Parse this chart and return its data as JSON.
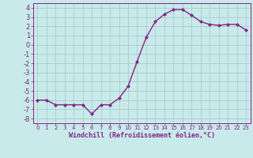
{
  "x": [
    0,
    1,
    2,
    3,
    4,
    5,
    6,
    7,
    8,
    9,
    10,
    11,
    12,
    13,
    14,
    15,
    16,
    17,
    18,
    19,
    20,
    21,
    22,
    23
  ],
  "y": [
    -6.0,
    -6.0,
    -6.5,
    -6.5,
    -6.5,
    -6.5,
    -7.5,
    -6.5,
    -6.5,
    -5.8,
    -4.5,
    -1.8,
    0.8,
    2.5,
    3.3,
    3.8,
    3.8,
    3.2,
    2.5,
    2.2,
    2.1,
    2.2,
    2.2,
    1.6
  ],
  "line_color": "#882288",
  "marker": "D",
  "marker_size": 2.0,
  "bg_color": "#c8eaea",
  "grid_color": "#aacccc",
  "xlabel": "Windchill (Refroidissement éolien,°C)",
  "ylim": [
    -8.5,
    4.5
  ],
  "xlim": [
    -0.5,
    23.5
  ],
  "yticks": [
    -8,
    -7,
    -6,
    -5,
    -4,
    -3,
    -2,
    -1,
    0,
    1,
    2,
    3,
    4
  ],
  "xticks": [
    0,
    1,
    2,
    3,
    4,
    5,
    6,
    7,
    8,
    9,
    10,
    11,
    12,
    13,
    14,
    15,
    16,
    17,
    18,
    19,
    20,
    21,
    22,
    23
  ],
  "tick_color": "#882288",
  "label_color": "#882288",
  "spine_color": "#882288",
  "line_width": 1.0,
  "xlabel_fontsize": 6.0,
  "ytick_fontsize": 6.0,
  "xtick_fontsize": 5.0
}
